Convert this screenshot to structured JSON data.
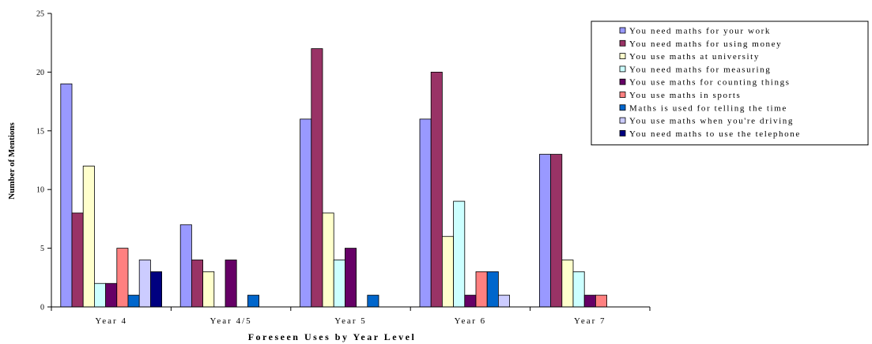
{
  "chart_data": {
    "type": "bar",
    "title": "",
    "xlabel": "Foreseen Uses by Year Level",
    "ylabel": "Number of Mentions",
    "ylim": [
      0,
      25
    ],
    "yticks": [
      0,
      5,
      10,
      15,
      20,
      25
    ],
    "grid": false,
    "legend_position": "right",
    "categories": [
      "Year 4",
      "Year 4/5",
      "Year 5",
      "Year 6",
      "Year 7"
    ],
    "series": [
      {
        "name": "You need maths for your work",
        "color": "#9999ff",
        "values": [
          19,
          7,
          16,
          16,
          13
        ]
      },
      {
        "name": "You need maths for using money",
        "color": "#993366",
        "values": [
          8,
          4,
          22,
          20,
          13
        ]
      },
      {
        "name": "You use maths at university",
        "color": "#ffffcc",
        "values": [
          12,
          3,
          8,
          6,
          4
        ]
      },
      {
        "name": "You need maths for measuring",
        "color": "#ccffff",
        "values": [
          2,
          0,
          4,
          9,
          3
        ]
      },
      {
        "name": "You use maths for counting things",
        "color": "#660066",
        "values": [
          2,
          4,
          5,
          1,
          1
        ]
      },
      {
        "name": "You use maths in sports",
        "color": "#ff8080",
        "values": [
          5,
          0,
          0,
          3,
          1
        ]
      },
      {
        "name": "Maths is used for telling the time",
        "color": "#0066cc",
        "values": [
          1,
          1,
          1,
          3,
          0
        ]
      },
      {
        "name": "You use maths when you're driving",
        "color": "#ccccff",
        "values": [
          4,
          0,
          0,
          1,
          0
        ]
      },
      {
        "name": "You need maths to use the telephone",
        "color": "#000080",
        "values": [
          3,
          0,
          0,
          0,
          0
        ]
      }
    ]
  }
}
